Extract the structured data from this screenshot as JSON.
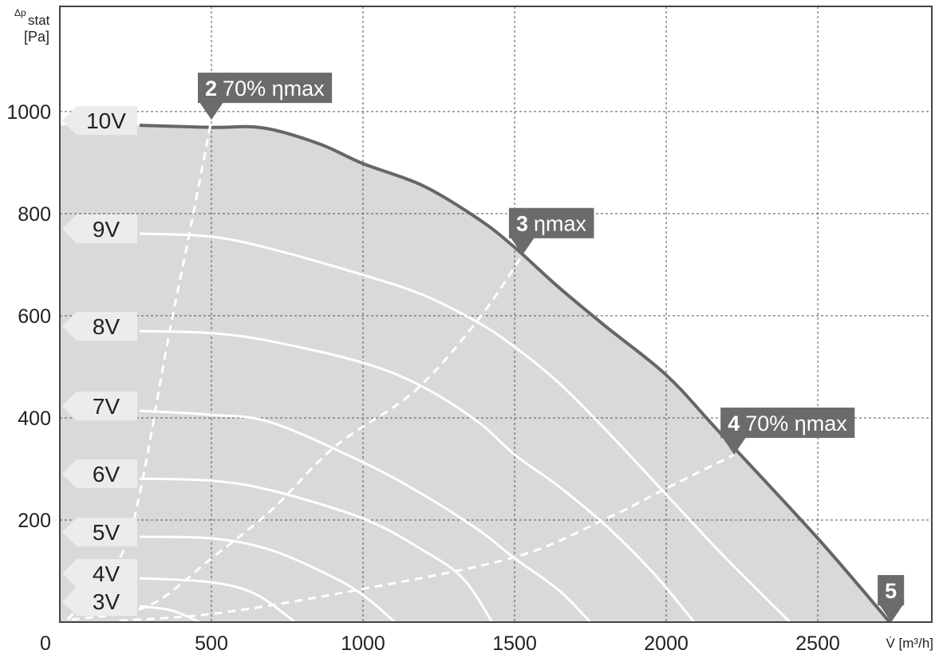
{
  "chart_data": {
    "type": "line",
    "y_label": {
      "symbol": "Δp",
      "subscript": "stat",
      "unit": "[Pa]"
    },
    "x_label": "V̇ [m³/h]",
    "xlim": [
      0,
      2876
    ],
    "ylim": [
      0,
      1206
    ],
    "xticks": [
      0,
      500,
      1000,
      1500,
      2000,
      2500
    ],
    "yticks": [
      200,
      400,
      600,
      800,
      1000
    ],
    "grid": true,
    "fill_color": "#d9d9d9",
    "series": [
      {
        "name": "10V",
        "color": "#666666",
        "x": [
          263,
          500,
          671,
          855,
          1000,
          1197,
          1382,
          1500,
          1645,
          1803,
          2000,
          2171,
          2500,
          2737
        ],
        "values": [
          973,
          969,
          968,
          937,
          898,
          855,
          789,
          734,
          656,
          578,
          484,
          375,
          164,
          0
        ]
      },
      {
        "name": "9V",
        "color": "#ffffff",
        "x": [
          263,
          500,
          697,
          1000,
          1197,
          1382,
          1500,
          1645,
          1803,
          2000,
          2171,
          2303,
          2408
        ],
        "values": [
          761,
          755,
          731,
          680,
          641,
          586,
          539,
          469,
          375,
          250,
          141,
          62,
          0
        ]
      },
      {
        "name": "8V",
        "color": "#ffffff",
        "x": [
          263,
          500,
          697,
          1000,
          1197,
          1382,
          1500,
          1645,
          1803,
          1961,
          2092
        ],
        "values": [
          570,
          566,
          550,
          508,
          461,
          391,
          328,
          266,
          188,
          94,
          0
        ]
      },
      {
        "name": "7V",
        "color": "#ffffff",
        "x": [
          263,
          500,
          697,
          1000,
          1197,
          1382,
          1500,
          1645,
          1750
        ],
        "values": [
          414,
          406,
          391,
          313,
          250,
          180,
          125,
          63,
          0
        ]
      },
      {
        "name": "6V",
        "color": "#ffffff",
        "x": [
          263,
          500,
          697,
          1000,
          1197,
          1329,
          1426
        ],
        "values": [
          281,
          277,
          258,
          203,
          141,
          86,
          0
        ]
      },
      {
        "name": "5V",
        "color": "#ffffff",
        "x": [
          263,
          500,
          697,
          908,
          1013,
          1105
        ],
        "values": [
          167,
          164,
          141,
          86,
          47,
          0
        ]
      },
      {
        "name": "4V",
        "color": "#ffffff",
        "x": [
          263,
          500,
          645,
          776
        ],
        "values": [
          86,
          78,
          55,
          0
        ]
      },
      {
        "name": "3V",
        "color": "#ffffff",
        "x": [
          263,
          368,
          461
        ],
        "values": [
          31,
          23,
          0
        ]
      }
    ],
    "efficiency_lines": [
      {
        "number": "2",
        "label": "70% ηmax",
        "color": "#ffffff",
        "x": [
          26,
          197,
          263,
          355,
          434,
          500
        ],
        "values": [
          5,
          125,
          250,
          547,
          781,
          984
        ]
      },
      {
        "number": "3",
        "label": "ηmax",
        "color": "#ffffff",
        "x": [
          39,
          289,
          500,
          697,
          908,
          1171,
          1382,
          1526
        ],
        "values": [
          5,
          31,
          125,
          219,
          344,
          453,
          594,
          719
        ]
      },
      {
        "number": "4",
        "label": "70% ηmax",
        "color": "#ffffff",
        "x": [
          197,
          500,
          908,
          1487,
          1803,
          1987,
          2224
        ],
        "values": [
          3,
          16,
          55,
          125,
          203,
          258,
          328
        ]
      }
    ],
    "end_point": {
      "number": "5",
      "x": 2737,
      "value": 0
    }
  }
}
